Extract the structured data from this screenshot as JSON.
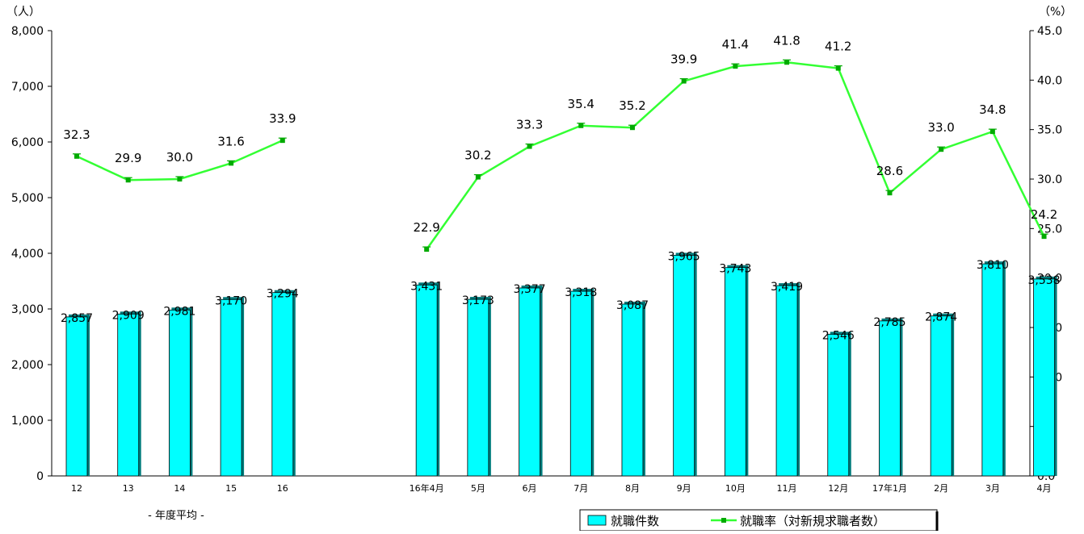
{
  "chart_data": {
    "type": "bar",
    "categories": [
      "12",
      "13",
      "14",
      "15",
      "16",
      "16年4月",
      "5月",
      "6月",
      "7月",
      "8月",
      "9月",
      "10月",
      "11月",
      "12月",
      "17年1月",
      "2月",
      "3月",
      "4月"
    ],
    "gap_after_index": 4,
    "series": [
      {
        "name": "就職件数",
        "type": "bar",
        "axis": "left",
        "color": "#00ffff",
        "values": [
          2857,
          2909,
          2981,
          3170,
          3294,
          3431,
          3173,
          3377,
          3318,
          3087,
          3965,
          3743,
          3419,
          2546,
          2785,
          2874,
          3810,
          3538
        ],
        "value_labels": [
          "2,857",
          "2,909",
          "2,981",
          "3,170",
          "3,294",
          "3,431",
          "3,173",
          "3,377",
          "3,318",
          "3,087",
          "3,965",
          "3,743",
          "3,419",
          "2,546",
          "2,785",
          "2,874",
          "3,810",
          "3,538"
        ]
      },
      {
        "name": "就職率（対新規求職者数）",
        "type": "line",
        "axis": "right",
        "color": "#33ff33",
        "values": [
          32.3,
          29.9,
          30.0,
          31.6,
          33.9,
          22.9,
          30.2,
          33.3,
          35.4,
          35.2,
          39.9,
          41.4,
          41.8,
          41.2,
          28.6,
          33.0,
          34.8,
          24.2
        ],
        "value_labels": [
          "32.3",
          "29.9",
          "30.0",
          "31.6",
          "33.9",
          "22.9",
          "30.2",
          "33.3",
          "35.4",
          "35.2",
          "39.9",
          "41.4",
          "41.8",
          "41.2",
          "28.6",
          "33.0",
          "34.8",
          "24.2"
        ]
      }
    ],
    "y_left": {
      "unit": "（人）",
      "min": 0,
      "max": 8000,
      "ticks": [
        "0",
        "1,000",
        "2,000",
        "3,000",
        "4,000",
        "5,000",
        "6,000",
        "7,000",
        "8,000"
      ]
    },
    "y_right": {
      "unit": "（%）",
      "min": 0,
      "max": 45,
      "ticks": [
        "0.0",
        "5.0",
        "10.0",
        "15.0",
        "20.0",
        "25.0",
        "30.0",
        "35.0",
        "40.0",
        "45.0"
      ]
    },
    "group_label": "- 年度平均 -",
    "legend": {
      "position": "bottom-right",
      "items": [
        "就職件数",
        "就職率（対新規求職者数）"
      ]
    },
    "grid": false
  }
}
